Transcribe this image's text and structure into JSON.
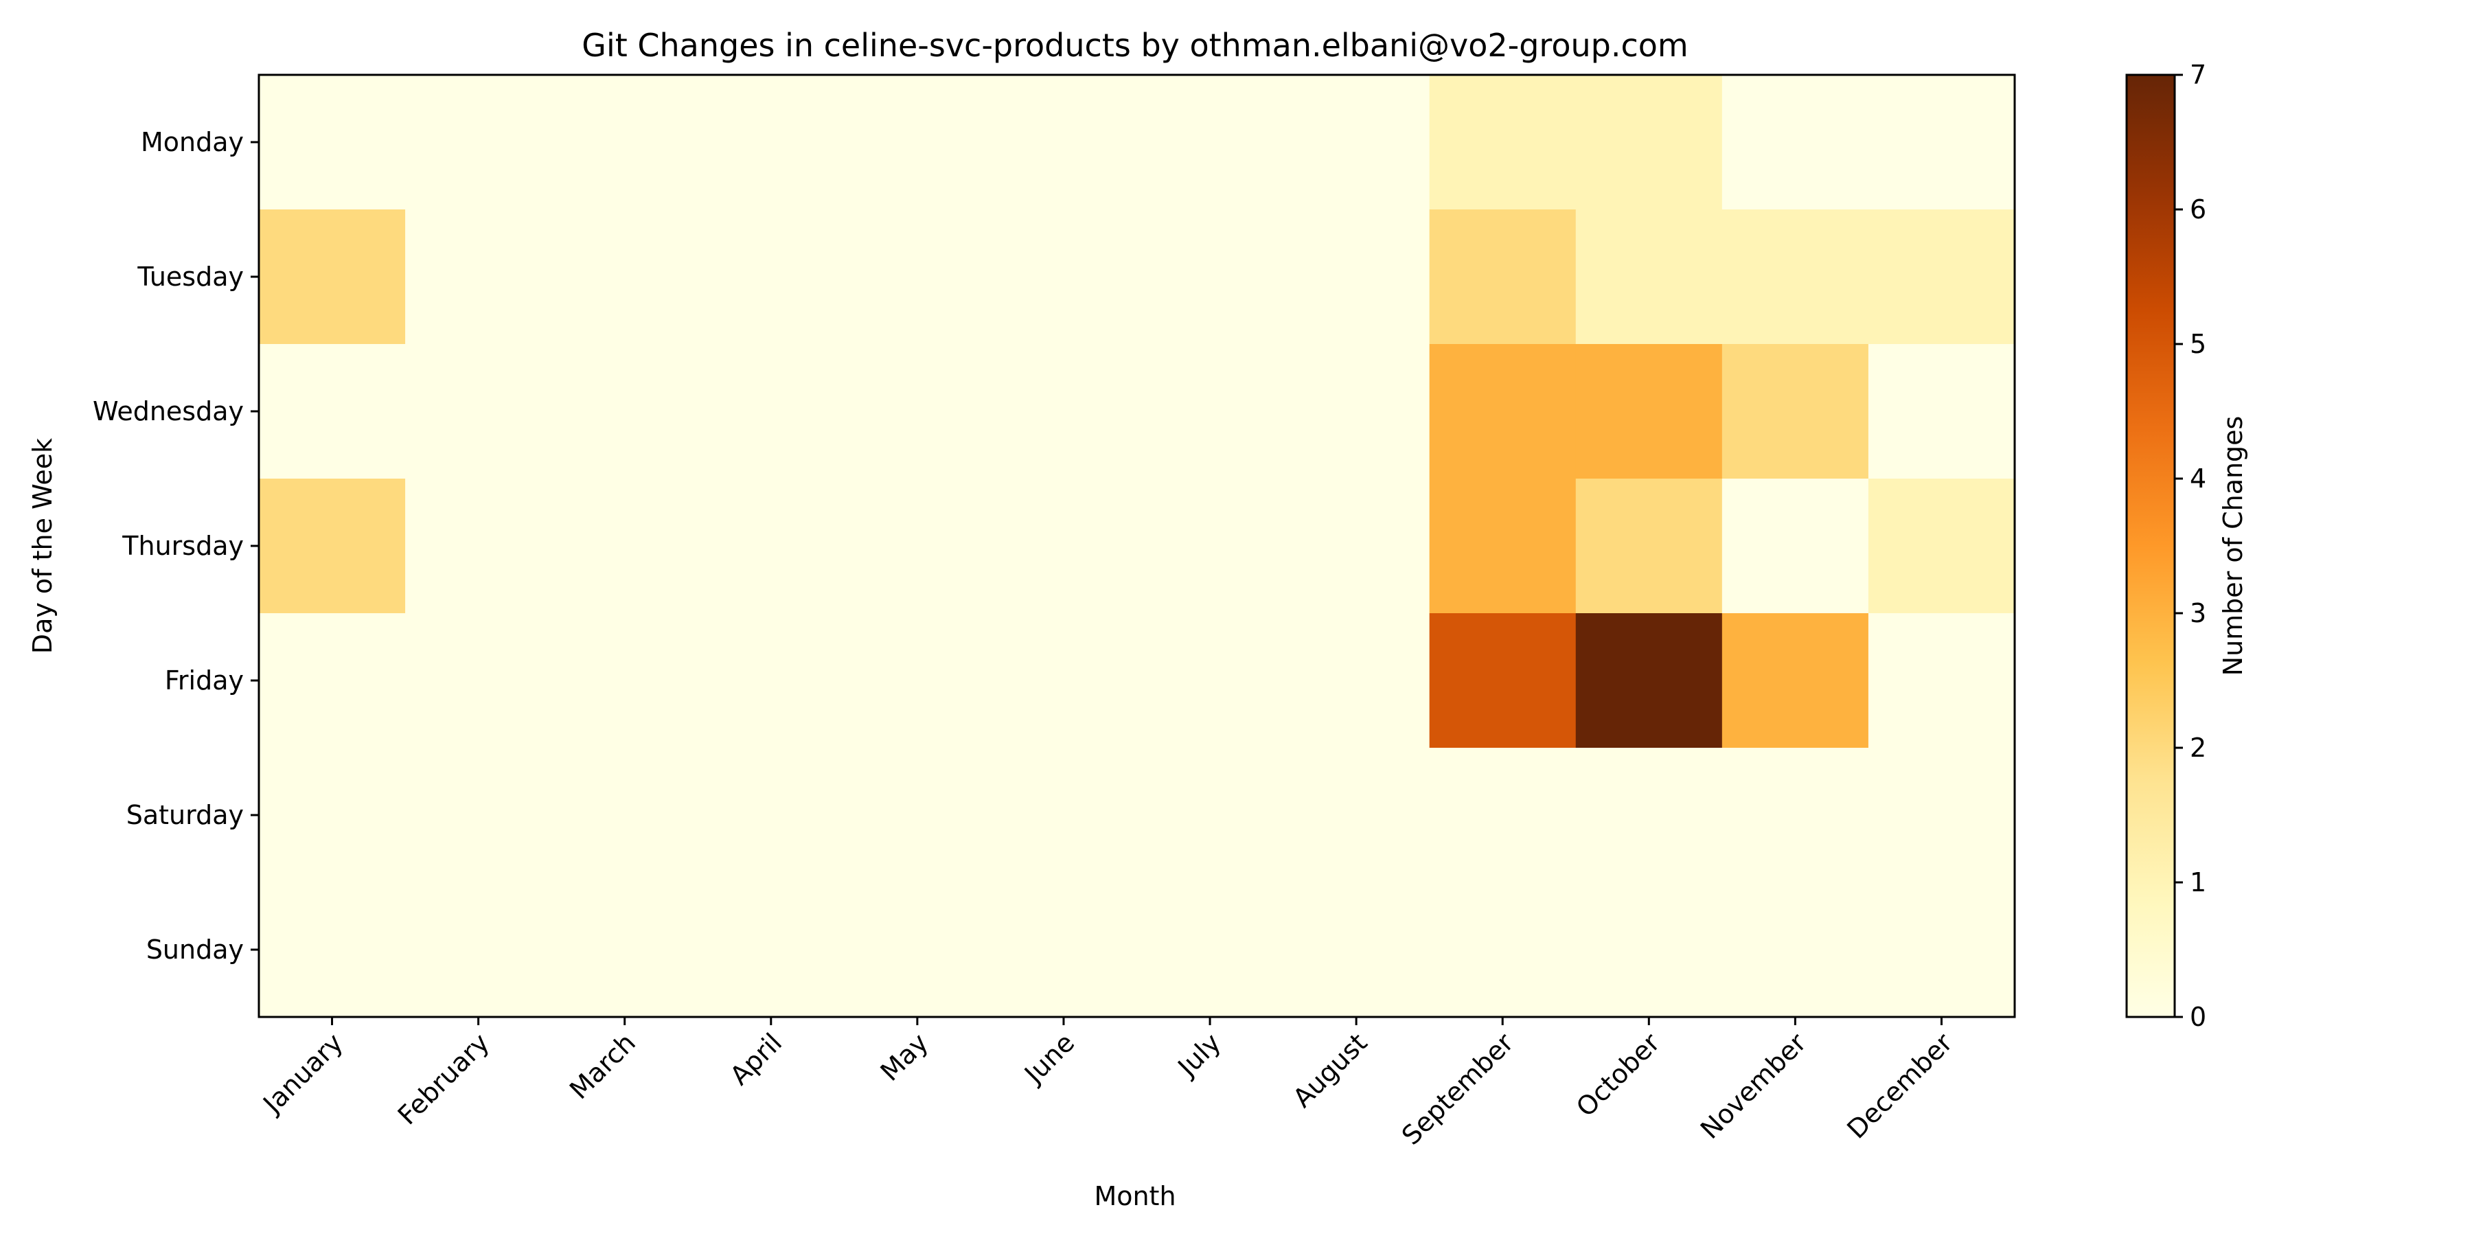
{
  "chart_data": {
    "type": "heatmap",
    "title": "Git Changes in celine-svc-products by othman.elbani@vo2-group.com",
    "xlabel": "Month",
    "ylabel": "Day of the Week",
    "x_categories": [
      "January",
      "February",
      "March",
      "April",
      "May",
      "June",
      "July",
      "August",
      "September",
      "October",
      "November",
      "December"
    ],
    "y_categories": [
      "Monday",
      "Tuesday",
      "Wednesday",
      "Thursday",
      "Friday",
      "Saturday",
      "Sunday"
    ],
    "values": [
      [
        0,
        0,
        0,
        0,
        0,
        0,
        0,
        0,
        1,
        1,
        0,
        0
      ],
      [
        2,
        0,
        0,
        0,
        0,
        0,
        0,
        0,
        2,
        1,
        1,
        1
      ],
      [
        0,
        0,
        0,
        0,
        0,
        0,
        0,
        0,
        3,
        3,
        2,
        0
      ],
      [
        2,
        0,
        0,
        0,
        0,
        0,
        0,
        0,
        3,
        2,
        0,
        1
      ],
      [
        0,
        0,
        0,
        0,
        0,
        0,
        0,
        0,
        5,
        7,
        3,
        0
      ],
      [
        0,
        0,
        0,
        0,
        0,
        0,
        0,
        0,
        0,
        0,
        0,
        0
      ],
      [
        0,
        0,
        0,
        0,
        0,
        0,
        0,
        0,
        0,
        0,
        0,
        0
      ]
    ],
    "colorbar": {
      "label": "Number of Changes",
      "min": 0,
      "max": 7,
      "ticks": [
        "0",
        "1",
        "2",
        "3",
        "4",
        "5",
        "6",
        "7"
      ],
      "colormap": "YlOrBr"
    },
    "grid": false,
    "legend": "colorbar-right"
  }
}
